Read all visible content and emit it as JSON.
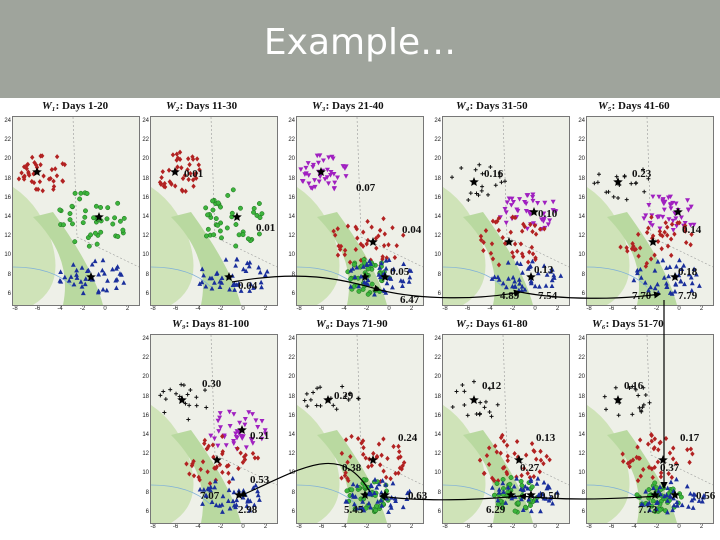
{
  "slide": {
    "title": "Example…",
    "colors": {
      "header": "#9fa49c",
      "red": "#b22222",
      "green": "#3cb43c",
      "blue": "#1a2f9c",
      "purple": "#a020c0",
      "black": "#111111"
    }
  },
  "axes": {
    "y_ticks": [
      "24",
      "22",
      "20",
      "18",
      "16",
      "14",
      "12",
      "10",
      "8",
      "6"
    ],
    "x_ticks": [
      "-8",
      "-6",
      "-4",
      "-2",
      "0",
      "2"
    ]
  },
  "panels": [
    {
      "id": "w1",
      "label_w": "W₁",
      "label_days": ": Days 1-20",
      "annotations": [],
      "clusters": [
        "red",
        "green",
        "blue"
      ]
    },
    {
      "id": "w2",
      "label_w": "W₂",
      "label_days": ": Days 11-30",
      "annotations": [
        "0.01",
        "0.01",
        "0.04"
      ],
      "clusters": [
        "red",
        "green",
        "blue"
      ]
    },
    {
      "id": "w3",
      "label_w": "W₃",
      "label_days": ": Days 21-40",
      "annotations": [
        "0.07",
        "0.04",
        "0.05",
        "6.47"
      ],
      "clusters": [
        "purple",
        "red",
        "green",
        "blue"
      ]
    },
    {
      "id": "w4",
      "label_w": "W₄",
      "label_days": ": Days 31-50",
      "annotations": [
        "0.16",
        "0.10",
        "0.13",
        "4.89",
        "7.54"
      ],
      "clusters": [
        "black",
        "purple",
        "red",
        "blue"
      ]
    },
    {
      "id": "w5",
      "label_w": "W₅",
      "label_days": ": Days 41-60",
      "annotations": [
        "0.23",
        "0.14",
        "0.18",
        "7.70",
        "7.79"
      ],
      "clusters": [
        "black",
        "purple",
        "red",
        "blue"
      ]
    },
    {
      "id": "w9",
      "label_w": "W₉",
      "label_days": ": Days 81-100",
      "annotations": [
        "0.30",
        "0.21",
        "0.53",
        "7.07",
        "2.98"
      ],
      "clusters": [
        "black",
        "purple",
        "red",
        "blue"
      ]
    },
    {
      "id": "w8",
      "label_w": "W₈",
      "label_days": ": Days 71-90",
      "annotations": [
        "0.29",
        "0.24",
        "0.38",
        "0.63",
        "5.45"
      ],
      "clusters": [
        "black",
        "red",
        "green",
        "blue"
      ]
    },
    {
      "id": "w7",
      "label_w": "W₇",
      "label_days": ": Days 61-80",
      "annotations": [
        "0.12",
        "0.13",
        "0.27",
        "0.50",
        "6.29"
      ],
      "clusters": [
        "black",
        "red",
        "green",
        "blue"
      ]
    },
    {
      "id": "w6",
      "label_w": "W₆",
      "label_days": ": Days 51-70",
      "annotations": [
        "0.16",
        "0.17",
        "0.37",
        "0.56",
        "7.73"
      ],
      "clusters": [
        "black",
        "red",
        "green",
        "blue"
      ]
    }
  ]
}
